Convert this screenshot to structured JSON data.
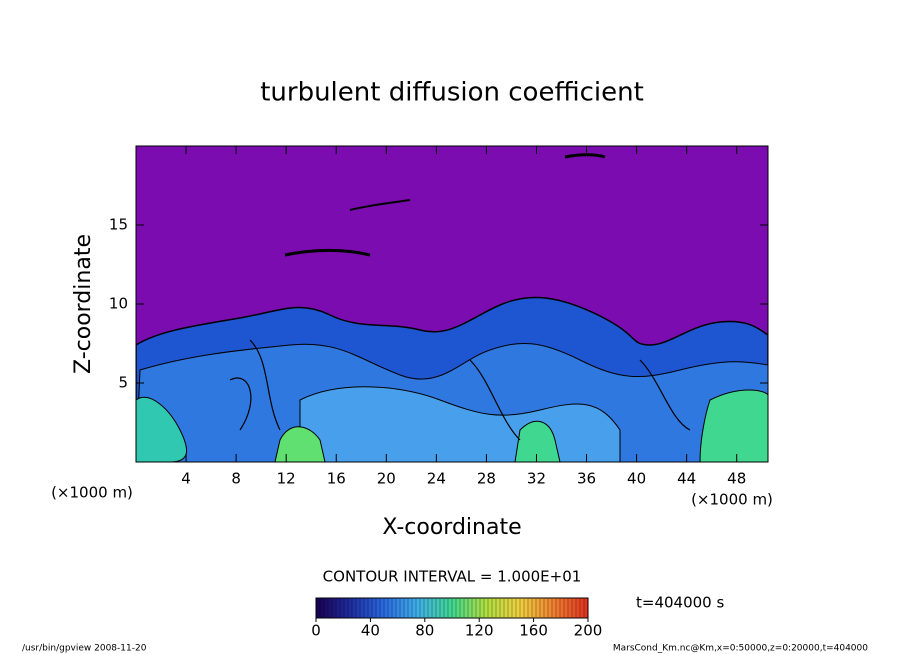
{
  "chart_data": {
    "type": "contour",
    "title": "turbulent diffusion coefficient",
    "xlabel": "X-coordinate",
    "ylabel": "Z-coordinate",
    "xunit": "(×1000 m)",
    "yunit": "(×1000 m)",
    "xlim": [
      0,
      50.5
    ],
    "xticks": [
      4,
      8,
      12,
      16,
      20,
      24,
      28,
      32,
      36,
      40,
      44,
      48
    ],
    "ylim": [
      0,
      20
    ],
    "yticks": [
      5,
      10,
      15
    ],
    "contour_interval": "CONTOUR INTERVAL = 1.000E+01",
    "time": "t=404000 s",
    "colorbar": {
      "lim": [
        0,
        200
      ],
      "ticks": [
        0,
        40,
        80,
        120,
        160,
        200
      ],
      "colors": [
        "#1a0050",
        "#1e2ca0",
        "#2a6ae0",
        "#40b0e8",
        "#40d890",
        "#b0e040",
        "#f0d040",
        "#f08030",
        "#e03020"
      ]
    },
    "footer_left": "/usr/bin/gpview  2008-11-20",
    "footer_right": "MarsCond_Km.nc@Km,x=0:50000,z=0:20000,t=404000"
  }
}
